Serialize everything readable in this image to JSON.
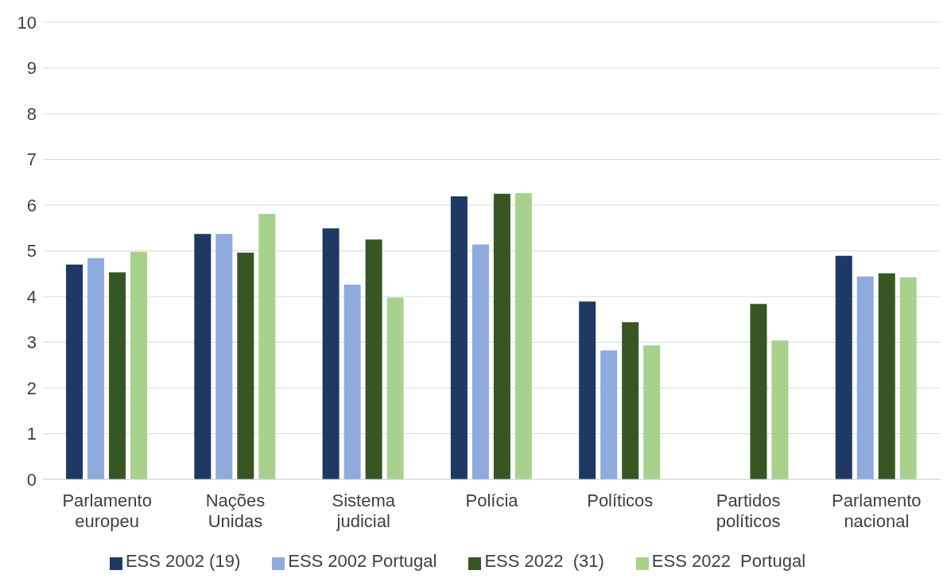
{
  "chart_data": {
    "type": "bar",
    "categories": [
      "Parlamento europeu",
      "Nações Unidas",
      "Sistema judicial",
      "Polícia",
      "Políticos",
      "Partidos políticos",
      "Parlamento nacional"
    ],
    "series": [
      {
        "name": "ESS 2002 (19)",
        "color": "#203864",
        "values": [
          4.7,
          5.37,
          5.49,
          6.19,
          3.89,
          null,
          4.89
        ]
      },
      {
        "name": "ESS 2002 Portugal",
        "color": "#8faadc",
        "values": [
          4.84,
          5.37,
          4.26,
          5.14,
          2.82,
          null,
          4.44
        ]
      },
      {
        "name": "ESS 2022  (31)",
        "color": "#375623",
        "values": [
          4.53,
          4.96,
          5.25,
          6.25,
          3.44,
          3.84,
          4.51
        ]
      },
      {
        "name": "ESS 2022  Portugal",
        "color": "#a9d18e",
        "values": [
          4.98,
          5.81,
          3.98,
          6.26,
          2.93,
          3.04,
          4.42
        ]
      }
    ],
    "ylim": [
      0,
      10
    ],
    "yticks": [
      0,
      1,
      2,
      3,
      4,
      5,
      6,
      7,
      8,
      9,
      10
    ],
    "grid": "y",
    "legend": "bottom"
  }
}
